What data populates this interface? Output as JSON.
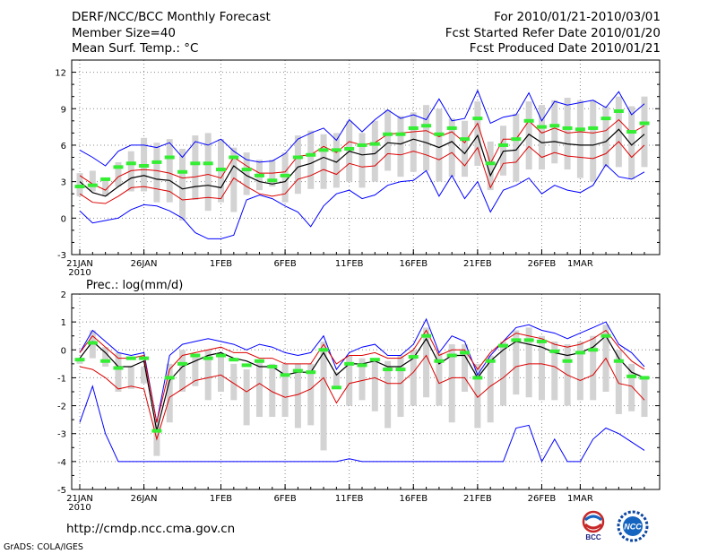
{
  "header": {
    "title": "DERF/NCC/BCC Monthly Forecast",
    "member_size": "Member Size=40",
    "variable": "Mean Surf. Temp.: °C",
    "period": "For 2010/01/21-2010/03/01",
    "started": "Fcst Started Refer Date 2010/01/20",
    "produced": "Fcst Produced Date 2010/01/21"
  },
  "footer": {
    "url": "http://cmdp.ncc.cma.gov.cn",
    "grads": "GrADS: COLA/IGES",
    "logo_left_text": "BCC",
    "logo_right_text": "NCC"
  },
  "colors": {
    "box": "#d3d3d3",
    "mean": "#000000",
    "inner": "#dd0000",
    "outer": "#0000ff",
    "obs": "#33ee33",
    "grid": "#888888"
  },
  "chart_data": [
    {
      "type": "line",
      "title": "Mean Surf. Temp.: °C",
      "xlabel": "",
      "ylabel": "°C",
      "ylim": [
        -3,
        13
      ],
      "yticks": [
        -3,
        0,
        3,
        6,
        9,
        12
      ],
      "grid": true,
      "x_ticks": [
        {
          "day": 0,
          "label": "21JAN",
          "sub": "2010"
        },
        {
          "day": 5,
          "label": "26JAN",
          "sub": ""
        },
        {
          "day": 11,
          "label": "1FEB",
          "sub": ""
        },
        {
          "day": 16,
          "label": "6FEB",
          "sub": ""
        },
        {
          "day": 21,
          "label": "11FEB",
          "sub": ""
        },
        {
          "day": 26,
          "label": "16FEB",
          "sub": ""
        },
        {
          "day": 31,
          "label": "21FEB",
          "sub": ""
        },
        {
          "day": 36,
          "label": "26FEB",
          "sub": ""
        },
        {
          "day": 39,
          "label": "1MAR",
          "sub": ""
        }
      ],
      "series": [
        {
          "name": "Ensemble mean",
          "color": "#000000",
          "values": [
            3.0,
            2.1,
            1.8,
            2.6,
            3.3,
            3.5,
            3.2,
            3.1,
            2.4,
            2.6,
            2.7,
            2.5,
            4.3,
            3.5,
            3.0,
            2.8,
            3.0,
            4.2,
            4.5,
            5.0,
            4.6,
            5.5,
            5.2,
            5.3,
            6.2,
            6.1,
            6.5,
            6.2,
            5.8,
            6.3,
            5.3,
            6.8,
            3.5,
            5.5,
            5.6,
            6.9,
            6.2,
            6.3,
            6.1,
            6.0,
            6.0,
            6.3,
            7.3,
            6.0,
            6.9
          ]
        },
        {
          "name": "Inner upper",
          "color": "#dd0000",
          "values": [
            3.5,
            2.8,
            2.3,
            3.4,
            3.9,
            4.0,
            3.9,
            3.7,
            3.3,
            3.4,
            3.6,
            3.3,
            5.0,
            4.3,
            3.7,
            3.7,
            3.8,
            5.1,
            5.2,
            5.9,
            5.4,
            6.3,
            6.0,
            6.2,
            6.9,
            7.0,
            7.1,
            7.2,
            6.7,
            7.1,
            6.2,
            7.8,
            4.5,
            6.5,
            6.5,
            8.0,
            7.0,
            7.4,
            7.0,
            7.1,
            7.0,
            7.2,
            8.1,
            7.0,
            7.6
          ]
        },
        {
          "name": "Inner lower",
          "color": "#dd0000",
          "values": [
            2.0,
            1.3,
            1.2,
            1.8,
            2.5,
            2.6,
            2.4,
            2.2,
            1.5,
            1.6,
            1.7,
            1.6,
            3.3,
            2.6,
            2.0,
            1.8,
            2.0,
            3.2,
            3.5,
            4.0,
            3.6,
            4.5,
            4.2,
            4.3,
            5.3,
            5.2,
            5.5,
            5.2,
            4.8,
            5.4,
            4.3,
            5.8,
            2.5,
            4.5,
            4.6,
            5.9,
            5.0,
            5.4,
            5.1,
            5.0,
            4.9,
            5.3,
            6.3,
            5.0,
            6.0
          ]
        },
        {
          "name": "Outer upper",
          "color": "#0000ff",
          "values": [
            5.6,
            5.0,
            4.3,
            5.5,
            6.0,
            6.0,
            5.8,
            6.2,
            5.0,
            6.3,
            6.0,
            6.5,
            5.5,
            4.8,
            4.6,
            4.7,
            5.3,
            6.5,
            7.0,
            7.4,
            6.4,
            8.1,
            7.1,
            8.1,
            8.9,
            8.2,
            8.5,
            8.1,
            9.8,
            8.0,
            8.2,
            10.5,
            7.8,
            8.3,
            8.5,
            10.3,
            8.0,
            9.6,
            9.3,
            9.5,
            9.7,
            9.1,
            10.4,
            8.5,
            9.4
          ]
        },
        {
          "name": "Outer lower",
          "color": "#0000ff",
          "values": [
            0.6,
            -0.4,
            -0.2,
            0.0,
            0.7,
            1.1,
            1.0,
            0.6,
            0.0,
            -1.2,
            -1.7,
            -1.7,
            -1.4,
            1.5,
            1.9,
            1.6,
            1.0,
            0.5,
            -0.7,
            1.0,
            2.0,
            2.3,
            1.6,
            1.9,
            2.7,
            3.0,
            3.1,
            3.9,
            1.8,
            3.5,
            1.6,
            3.0,
            0.5,
            2.3,
            2.7,
            3.3,
            2.0,
            2.7,
            2.3,
            2.1,
            2.7,
            4.4,
            3.4,
            3.2,
            3.8
          ]
        }
      ],
      "box_range": [
        [
          1.8,
          3.7
        ],
        [
          2.2,
          3.9
        ],
        [
          1.8,
          3.2
        ],
        [
          2.6,
          4.6
        ],
        [
          2.2,
          5.5
        ],
        [
          2.2,
          6.6
        ],
        [
          1.3,
          6.2
        ],
        [
          1.3,
          6.5
        ],
        [
          -0.2,
          5.7
        ],
        [
          1.5,
          6.8
        ],
        [
          0.6,
          7.0
        ],
        [
          1.3,
          6.5
        ],
        [
          0.5,
          5.8
        ],
        [
          1.9,
          5.4
        ],
        [
          2.3,
          4.8
        ],
        [
          2.6,
          4.8
        ],
        [
          1.3,
          5.4
        ],
        [
          2.0,
          6.8
        ],
        [
          2.4,
          7.2
        ],
        [
          2.4,
          6.9
        ],
        [
          2.5,
          7.0
        ],
        [
          3.0,
          8.0
        ],
        [
          2.5,
          7.0
        ],
        [
          3.0,
          8.0
        ],
        [
          3.9,
          8.9
        ],
        [
          3.4,
          8.4
        ],
        [
          3.8,
          8.7
        ],
        [
          3.9,
          9.3
        ],
        [
          3.0,
          9.0
        ],
        [
          3.4,
          8.2
        ],
        [
          3.4,
          8.0
        ],
        [
          4.3,
          9.6
        ],
        [
          2.3,
          6.3
        ],
        [
          3.5,
          7.6
        ],
        [
          3.0,
          8.6
        ],
        [
          4.0,
          9.6
        ],
        [
          4.0,
          9.3
        ],
        [
          4.5,
          9.7
        ],
        [
          4.0,
          9.9
        ],
        [
          3.3,
          9.7
        ],
        [
          3.0,
          9.7
        ],
        [
          4.2,
          9.2
        ],
        [
          4.2,
          10.0
        ],
        [
          3.2,
          9.2
        ],
        [
          4.2,
          10.0
        ]
      ],
      "observed": [
        2.6,
        2.7,
        3.2,
        4.2,
        4.5,
        4.3,
        4.6,
        5.0,
        3.8,
        4.5,
        4.5,
        4.0,
        5.0,
        4.0,
        3.5,
        3.1,
        3.5,
        5.0,
        5.2,
        5.6,
        5.6,
        5.7,
        6.0,
        6.1,
        6.9,
        6.9,
        7.4,
        7.6,
        6.9,
        7.4,
        6.5,
        8.2,
        4.5,
        6.0,
        6.5,
        8.0,
        7.5,
        7.6,
        7.4,
        7.3,
        7.4,
        8.2,
        8.8,
        7.1,
        7.8
      ]
    },
    {
      "type": "line",
      "title": "Prec.: log(mm/d)",
      "xlabel": "",
      "ylabel": "log(mm/d)",
      "ylim": [
        -5,
        2
      ],
      "yticks": [
        -5,
        -4,
        -3,
        -2,
        -1,
        0,
        1,
        2
      ],
      "grid": true,
      "x_ticks": [
        {
          "day": 0,
          "label": "21JAN",
          "sub": "2010"
        },
        {
          "day": 5,
          "label": "26JAN",
          "sub": ""
        },
        {
          "day": 11,
          "label": "1FEB",
          "sub": ""
        },
        {
          "day": 16,
          "label": "6FEB",
          "sub": ""
        },
        {
          "day": 21,
          "label": "11FEB",
          "sub": ""
        },
        {
          "day": 26,
          "label": "16FEB",
          "sub": ""
        },
        {
          "day": 31,
          "label": "21FEB",
          "sub": ""
        },
        {
          "day": 36,
          "label": "26FEB",
          "sub": ""
        },
        {
          "day": 39,
          "label": "1MAR",
          "sub": ""
        }
      ],
      "series": [
        {
          "name": "Ensemble mean",
          "color": "#000000",
          "values": [
            -0.3,
            0.3,
            -0.1,
            -0.6,
            -0.6,
            -0.4,
            -2.9,
            -1.1,
            -0.6,
            -0.4,
            -0.2,
            -0.1,
            -0.3,
            -0.4,
            -0.6,
            -0.6,
            -0.9,
            -0.8,
            -0.8,
            -0.1,
            -0.9,
            -0.5,
            -0.5,
            -0.4,
            -0.6,
            -0.6,
            -0.3,
            0.4,
            -0.5,
            -0.2,
            -0.2,
            -1.0,
            -0.4,
            0.0,
            0.3,
            0.2,
            0.1,
            -0.1,
            -0.2,
            -0.1,
            0.1,
            0.5,
            -0.3,
            -0.8,
            -1.0
          ]
        },
        {
          "name": "Inner upper",
          "color": "#dd0000",
          "values": [
            -0.1,
            0.5,
            0.1,
            -0.3,
            -0.3,
            -0.2,
            -2.6,
            -0.7,
            -0.2,
            -0.1,
            0.0,
            0.1,
            -0.1,
            -0.1,
            -0.3,
            -0.3,
            -0.5,
            -0.5,
            -0.5,
            0.2,
            -0.5,
            -0.2,
            -0.2,
            -0.1,
            -0.3,
            -0.3,
            0.0,
            0.7,
            -0.2,
            0.0,
            0.0,
            -0.7,
            -0.1,
            0.3,
            0.6,
            0.5,
            0.4,
            0.2,
            0.1,
            0.2,
            0.4,
            0.7,
            0.1,
            -0.4,
            -0.7
          ]
        },
        {
          "name": "Inner lower",
          "color": "#dd0000",
          "values": [
            -0.6,
            -0.7,
            -1.0,
            -1.4,
            -1.3,
            -1.4,
            -3.2,
            -1.7,
            -1.4,
            -1.1,
            -1.0,
            -0.9,
            -1.2,
            -1.5,
            -1.2,
            -1.5,
            -1.7,
            -1.6,
            -1.4,
            -1.0,
            -1.9,
            -1.2,
            -1.1,
            -1.0,
            -1.2,
            -1.2,
            -0.8,
            -0.2,
            -1.2,
            -1.0,
            -1.0,
            -1.7,
            -1.3,
            -1.0,
            -0.6,
            -0.5,
            -0.5,
            -0.6,
            -0.9,
            -1.1,
            -0.9,
            -0.3,
            -1.2,
            -1.3,
            -1.8
          ]
        },
        {
          "name": "Outer upper",
          "color": "#0000ff",
          "values": [
            -0.1,
            0.7,
            0.3,
            -0.1,
            -0.2,
            -0.1,
            -2.6,
            -0.2,
            0.2,
            0.3,
            0.4,
            0.3,
            0.2,
            0.0,
            0.2,
            0.1,
            -0.1,
            -0.2,
            -0.1,
            0.5,
            -0.7,
            -0.1,
            0.1,
            0.2,
            -0.2,
            -0.2,
            0.2,
            1.1,
            -0.1,
            0.5,
            0.3,
            -0.9,
            -0.2,
            0.3,
            0.8,
            0.9,
            0.7,
            0.6,
            0.4,
            0.6,
            0.8,
            1.0,
            0.2,
            -0.1,
            -0.6
          ]
        },
        {
          "name": "Outer lower",
          "color": "#0000ff",
          "values": [
            -2.6,
            -1.3,
            -3.0,
            -4.0,
            -4.0,
            -4.0,
            -4.0,
            -4.0,
            -4.0,
            -4.0,
            -4.0,
            -4.0,
            -4.0,
            -4.0,
            -4.0,
            -4.0,
            -4.0,
            -4.0,
            -4.0,
            -4.0,
            -4.0,
            -3.9,
            -4.0,
            -4.0,
            -4.0,
            -4.0,
            -4.0,
            -4.0,
            -4.0,
            -4.0,
            -4.0,
            -4.0,
            -4.0,
            -4.0,
            -2.8,
            -2.7,
            -4.0,
            -3.2,
            -4.0,
            -4.0,
            -3.2,
            -2.8,
            -3.0,
            -3.3,
            -3.6
          ]
        }
      ],
      "box_range": [
        [
          -0.5,
          -0.3
        ],
        [
          -0.3,
          0.7
        ],
        [
          -0.6,
          0.1
        ],
        [
          -1.5,
          -0.1
        ],
        [
          -1.4,
          -0.6
        ],
        [
          -1.2,
          -0.6
        ],
        [
          -3.8,
          -2.5
        ],
        [
          -2.6,
          -0.5
        ],
        [
          -1.5,
          0.0
        ],
        [
          -1.3,
          -0.2
        ],
        [
          -1.8,
          0.0
        ],
        [
          -1.5,
          -0.2
        ],
        [
          -1.8,
          -0.5
        ],
        [
          -2.7,
          -0.7
        ],
        [
          -2.4,
          -0.4
        ],
        [
          -2.4,
          -0.5
        ],
        [
          -2.4,
          -0.5
        ],
        [
          -2.8,
          -0.5
        ],
        [
          -2.7,
          -0.5
        ],
        [
          -3.6,
          0.3
        ],
        [
          -1.3,
          -0.8
        ],
        [
          -2.0,
          -0.2
        ],
        [
          -1.8,
          -0.3
        ],
        [
          -2.2,
          -0.3
        ],
        [
          -2.8,
          -0.4
        ],
        [
          -2.4,
          -0.2
        ],
        [
          -2.0,
          0.0
        ],
        [
          -1.7,
          0.8
        ],
        [
          -2.0,
          -0.1
        ],
        [
          -2.6,
          0.2
        ],
        [
          -1.5,
          0.2
        ],
        [
          -2.8,
          -0.5
        ],
        [
          -2.6,
          -0.2
        ],
        [
          -2.0,
          0.3
        ],
        [
          -1.6,
          0.7
        ],
        [
          -1.7,
          0.8
        ],
        [
          -1.8,
          0.5
        ],
        [
          -1.8,
          0.3
        ],
        [
          -2.0,
          0.2
        ],
        [
          -1.8,
          0.3
        ],
        [
          -1.8,
          0.5
        ],
        [
          -1.5,
          0.9
        ],
        [
          -2.3,
          0.0
        ],
        [
          -2.2,
          -0.5
        ],
        [
          -2.4,
          -1.0
        ]
      ],
      "observed": [
        -0.35,
        0.25,
        -0.4,
        -0.65,
        -0.3,
        -0.3,
        -2.9,
        -1.0,
        -0.5,
        -0.2,
        -0.3,
        -0.2,
        -0.35,
        -0.55,
        -0.4,
        -0.6,
        -0.9,
        -0.75,
        -0.8,
        0.0,
        -1.35,
        -0.5,
        -0.55,
        -0.35,
        -0.7,
        -0.7,
        -0.25,
        0.5,
        -0.4,
        -0.2,
        -0.1,
        -1.0,
        -0.4,
        0.15,
        0.35,
        0.35,
        0.3,
        -0.05,
        -0.4,
        -0.1,
        0.0,
        0.5,
        -0.4,
        -0.95,
        -1.0
      ]
    }
  ]
}
